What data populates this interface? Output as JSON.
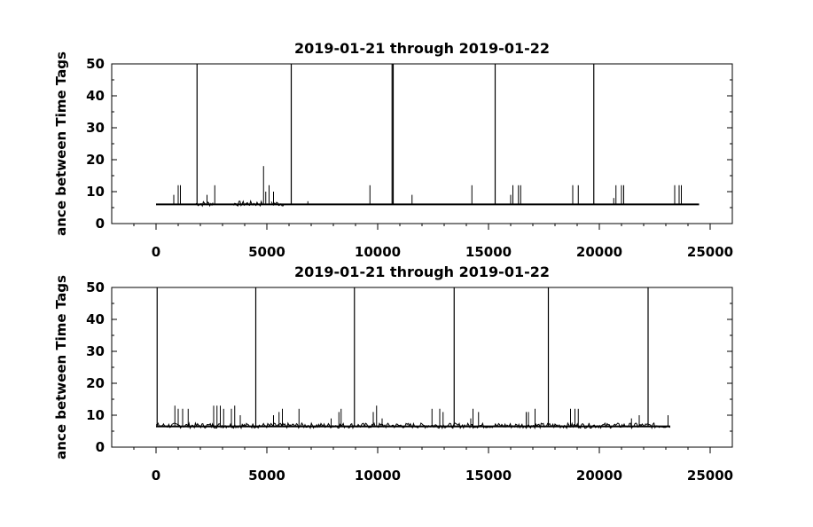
{
  "chart_data": [
    {
      "type": "line",
      "title": "2019-01-21 through 2019-01-22",
      "ylabel": "ance between Time Tags",
      "xlabel": "",
      "xlim": [
        -2000,
        26000
      ],
      "ylim": [
        0,
        50
      ],
      "xticks": [
        0,
        5000,
        10000,
        15000,
        20000,
        25000
      ],
      "yticks": [
        0,
        10,
        20,
        30,
        40,
        50
      ],
      "grid": false,
      "baseline": 6,
      "x_end": 24500,
      "noise_segments": [
        [
          1800,
          2600
        ],
        [
          3500,
          4800
        ],
        [
          5200,
          5800
        ]
      ],
      "spikes": [
        {
          "x": 800,
          "y": 9
        },
        {
          "x": 1000,
          "y": 12
        },
        {
          "x": 1100,
          "y": 12
        },
        {
          "x": 1850,
          "y": 50
        },
        {
          "x": 2300,
          "y": 9
        },
        {
          "x": 2650,
          "y": 12
        },
        {
          "x": 4850,
          "y": 18
        },
        {
          "x": 4950,
          "y": 10
        },
        {
          "x": 5100,
          "y": 12
        },
        {
          "x": 5300,
          "y": 10
        },
        {
          "x": 6100,
          "y": 50
        },
        {
          "x": 6850,
          "y": 7
        },
        {
          "x": 9650,
          "y": 12
        },
        {
          "x": 10650,
          "y": 50
        },
        {
          "x": 10700,
          "y": 50
        },
        {
          "x": 11550,
          "y": 9
        },
        {
          "x": 14250,
          "y": 12
        },
        {
          "x": 15300,
          "y": 50
        },
        {
          "x": 16000,
          "y": 9
        },
        {
          "x": 16100,
          "y": 12
        },
        {
          "x": 16350,
          "y": 12
        },
        {
          "x": 16450,
          "y": 12
        },
        {
          "x": 18800,
          "y": 12
        },
        {
          "x": 19050,
          "y": 12
        },
        {
          "x": 19750,
          "y": 50
        },
        {
          "x": 20650,
          "y": 8
        },
        {
          "x": 20750,
          "y": 12
        },
        {
          "x": 21000,
          "y": 12
        },
        {
          "x": 21100,
          "y": 12
        },
        {
          "x": 23400,
          "y": 12
        },
        {
          "x": 23600,
          "y": 12
        },
        {
          "x": 23700,
          "y": 12
        }
      ]
    },
    {
      "type": "line",
      "title": "2019-01-21 through 2019-01-22",
      "ylabel": "ance between Time Tags",
      "xlabel": "",
      "xlim": [
        -2000,
        26000
      ],
      "ylim": [
        0,
        50
      ],
      "xticks": [
        0,
        5000,
        10000,
        15000,
        20000,
        25000
      ],
      "yticks": [
        0,
        10,
        20,
        30,
        40,
        50
      ],
      "grid": false,
      "baseline": 6.5,
      "x_end": 23200,
      "noise_segments": [
        [
          0,
          23200
        ]
      ],
      "spikes": [
        {
          "x": 50,
          "y": 50
        },
        {
          "x": 850,
          "y": 13
        },
        {
          "x": 1000,
          "y": 12
        },
        {
          "x": 1200,
          "y": 12
        },
        {
          "x": 1450,
          "y": 12
        },
        {
          "x": 2600,
          "y": 13
        },
        {
          "x": 2750,
          "y": 13
        },
        {
          "x": 2900,
          "y": 13
        },
        {
          "x": 3050,
          "y": 12
        },
        {
          "x": 3400,
          "y": 12
        },
        {
          "x": 3550,
          "y": 13
        },
        {
          "x": 3800,
          "y": 10
        },
        {
          "x": 4500,
          "y": 50
        },
        {
          "x": 5300,
          "y": 10
        },
        {
          "x": 5550,
          "y": 11
        },
        {
          "x": 5700,
          "y": 12
        },
        {
          "x": 6450,
          "y": 12
        },
        {
          "x": 7900,
          "y": 9
        },
        {
          "x": 8250,
          "y": 11
        },
        {
          "x": 8350,
          "y": 12
        },
        {
          "x": 8950,
          "y": 50
        },
        {
          "x": 9800,
          "y": 11
        },
        {
          "x": 9950,
          "y": 13
        },
        {
          "x": 10200,
          "y": 9
        },
        {
          "x": 12450,
          "y": 12
        },
        {
          "x": 12800,
          "y": 12
        },
        {
          "x": 12950,
          "y": 11
        },
        {
          "x": 13450,
          "y": 50
        },
        {
          "x": 14200,
          "y": 9
        },
        {
          "x": 14300,
          "y": 12
        },
        {
          "x": 14550,
          "y": 11
        },
        {
          "x": 16700,
          "y": 11
        },
        {
          "x": 16800,
          "y": 11
        },
        {
          "x": 17100,
          "y": 12
        },
        {
          "x": 17700,
          "y": 50
        },
        {
          "x": 18700,
          "y": 12
        },
        {
          "x": 18900,
          "y": 12
        },
        {
          "x": 19050,
          "y": 12
        },
        {
          "x": 21450,
          "y": 9
        },
        {
          "x": 21800,
          "y": 10
        },
        {
          "x": 22200,
          "y": 50
        },
        {
          "x": 23100,
          "y": 10
        }
      ]
    }
  ]
}
